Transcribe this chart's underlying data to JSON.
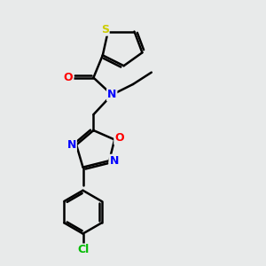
{
  "bg_color": "#e8eaea",
  "atom_colors": {
    "S": "#cccc00",
    "O": "#ff0000",
    "N": "#0000ff",
    "Cl": "#00bb00",
    "C": "#000000"
  },
  "bond_color": "#000000",
  "bond_width": 1.8,
  "fig_w": 3.0,
  "fig_h": 3.0,
  "dpi": 100,
  "xlim": [
    0,
    10
  ],
  "ylim": [
    0,
    10
  ]
}
